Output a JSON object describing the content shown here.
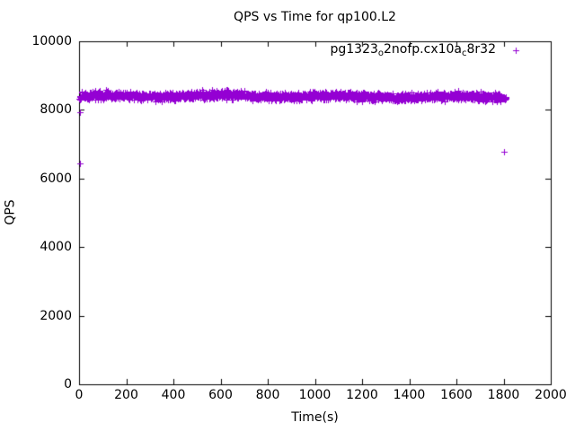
{
  "chart_data": {
    "type": "scatter",
    "title": "QPS vs Time for qp100.L2",
    "xlabel": "Time(s)",
    "ylabel": "QPS",
    "xlim": [
      0,
      2000
    ],
    "ylim": [
      0,
      10000
    ],
    "xticks": [
      0,
      200,
      400,
      600,
      800,
      1000,
      1200,
      1400,
      1600,
      1800,
      2000
    ],
    "yticks": [
      0,
      2000,
      4000,
      6000,
      8000,
      10000
    ],
    "grid": false,
    "border": true,
    "tick_style": "inward-mirrored",
    "legend_position": "top-right-inside",
    "background_color": "#ffffff",
    "axis_color": "#000000",
    "series": [
      {
        "name": "pg1323_o2nofp.cx10a_c8r32",
        "label_segments": [
          {
            "text": "pg1323"
          },
          {
            "text": "o",
            "sub": true
          },
          {
            "text": "2nofp.cx10a"
          },
          {
            "text": "c",
            "sub": true
          },
          {
            "text": "8r32"
          }
        ],
        "marker": "plus",
        "color": "#9400d3",
        "band": {
          "description": "dense noisy horizontal band of per-second samples",
          "t_start": 0,
          "t_end": 1810,
          "step": 1,
          "mean_qps": 8400,
          "noise_qps": 170,
          "startup_dip_qps": 120,
          "seed": 1323
        },
        "outliers": [
          [
            2,
            7920
          ],
          [
            3,
            6450
          ],
          [
            1800,
            6780
          ]
        ]
      }
    ]
  }
}
